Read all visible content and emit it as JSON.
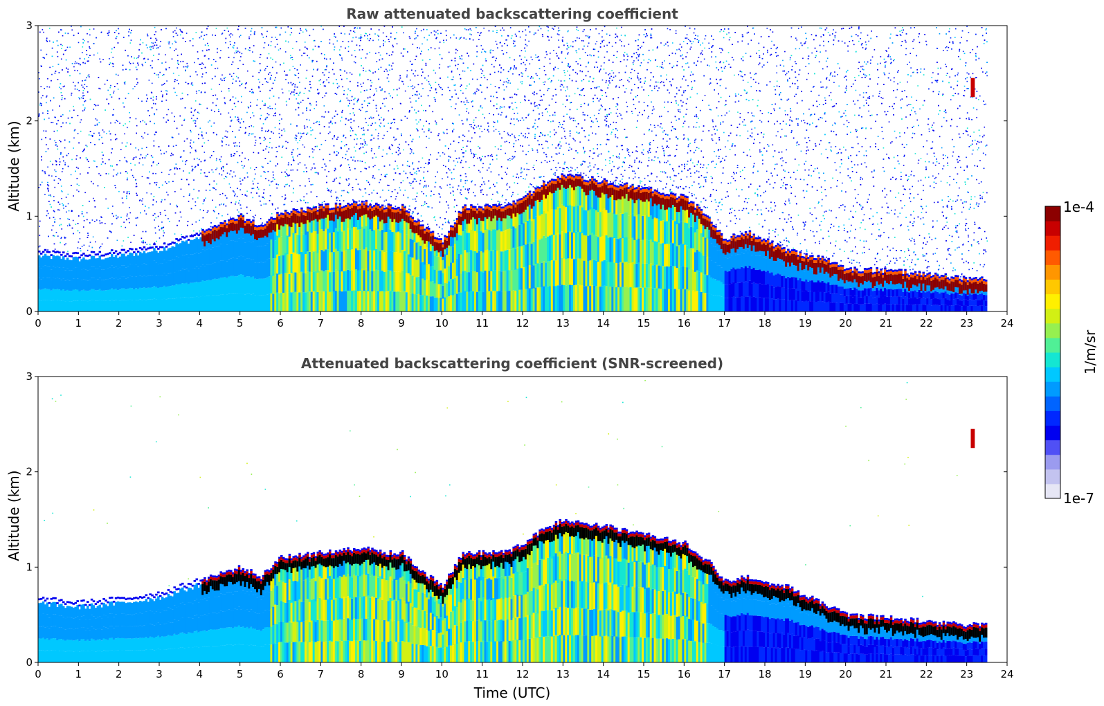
{
  "chart_data": [
    {
      "type": "heatmap",
      "title": "Raw attenuated backscattering coefficient",
      "xlabel": "",
      "ylabel": "Altitude (km)",
      "xlim": [
        0,
        24
      ],
      "ylim": [
        0,
        3
      ],
      "xticks": [
        "0",
        "1",
        "2",
        "3",
        "4",
        "5",
        "6",
        "7",
        "8",
        "9",
        "10",
        "11",
        "12",
        "13",
        "14",
        "15",
        "16",
        "17",
        "18",
        "19",
        "20",
        "21",
        "22",
        "23",
        "24"
      ],
      "yticks": [
        "0",
        "1",
        "2",
        "3"
      ],
      "data_end_hour": 23.5,
      "layer_top_km": [
        [
          0,
          0.58
        ],
        [
          1,
          0.55
        ],
        [
          2,
          0.58
        ],
        [
          3,
          0.65
        ],
        [
          4,
          0.78
        ],
        [
          5,
          0.95
        ],
        [
          5.5,
          0.85
        ],
        [
          6,
          1.0
        ],
        [
          7,
          1.05
        ],
        [
          8,
          1.1
        ],
        [
          8.7,
          1.05
        ],
        [
          9,
          1.05
        ],
        [
          9.5,
          0.85
        ],
        [
          10,
          0.7
        ],
        [
          10.5,
          1.05
        ],
        [
          11,
          1.05
        ],
        [
          11.5,
          1.05
        ],
        [
          12,
          1.15
        ],
        [
          12.5,
          1.3
        ],
        [
          13,
          1.4
        ],
        [
          14,
          1.32
        ],
        [
          15,
          1.25
        ],
        [
          16,
          1.15
        ],
        [
          16.6,
          0.95
        ],
        [
          17,
          0.7
        ],
        [
          17.5,
          0.8
        ],
        [
          18,
          0.7
        ],
        [
          18.5,
          0.6
        ],
        [
          19,
          0.55
        ],
        [
          19.5,
          0.5
        ],
        [
          20,
          0.4
        ],
        [
          21,
          0.38
        ],
        [
          22,
          0.35
        ],
        [
          23,
          0.3
        ],
        [
          23.5,
          0.3
        ]
      ],
      "noise": "dense",
      "min_layer": "aerosol-blue"
    },
    {
      "type": "heatmap",
      "title": "Attenuated backscattering coefficient (SNR-screened)",
      "xlabel": "Time (UTC)",
      "ylabel": "Altitude (km)",
      "xlim": [
        0,
        24
      ],
      "ylim": [
        0,
        3
      ],
      "xticks": [
        "0",
        "1",
        "2",
        "3",
        "4",
        "5",
        "6",
        "7",
        "8",
        "9",
        "10",
        "11",
        "12",
        "13",
        "14",
        "15",
        "16",
        "17",
        "18",
        "19",
        "20",
        "21",
        "22",
        "23",
        "24"
      ],
      "yticks": [
        "0",
        "1",
        "2",
        "3"
      ],
      "data_end_hour": 23.5,
      "layer_top_km": [
        [
          0,
          0.62
        ],
        [
          1,
          0.58
        ],
        [
          2,
          0.62
        ],
        [
          3,
          0.68
        ],
        [
          4,
          0.82
        ],
        [
          5,
          0.95
        ],
        [
          5.5,
          0.85
        ],
        [
          6,
          1.05
        ],
        [
          7,
          1.1
        ],
        [
          8,
          1.15
        ],
        [
          8.7,
          1.1
        ],
        [
          9,
          1.1
        ],
        [
          9.5,
          0.9
        ],
        [
          10,
          0.75
        ],
        [
          10.5,
          1.1
        ],
        [
          11,
          1.1
        ],
        [
          11.5,
          1.1
        ],
        [
          12,
          1.2
        ],
        [
          12.5,
          1.35
        ],
        [
          13,
          1.45
        ],
        [
          14,
          1.38
        ],
        [
          15,
          1.3
        ],
        [
          16,
          1.2
        ],
        [
          16.6,
          1.0
        ],
        [
          17,
          0.8
        ],
        [
          17.5,
          0.85
        ],
        [
          18,
          0.8
        ],
        [
          18.5,
          0.75
        ],
        [
          19,
          0.65
        ],
        [
          19.5,
          0.55
        ],
        [
          20,
          0.45
        ],
        [
          21,
          0.42
        ],
        [
          22,
          0.38
        ],
        [
          23,
          0.35
        ],
        [
          23.5,
          0.35
        ]
      ],
      "noise": "sparse",
      "min_layer": "screened-white"
    }
  ],
  "colorbar": {
    "label": "1/m/sr",
    "max_label": "1e-4",
    "min_label": "1e-7",
    "colors": [
      "#e6e6f5",
      "#c3c3f0",
      "#9b9bef",
      "#5050f5",
      "#0000f0",
      "#0028ff",
      "#0064ff",
      "#009bff",
      "#00c8ff",
      "#14e6d2",
      "#50f096",
      "#96f050",
      "#d2f014",
      "#fff000",
      "#ffc800",
      "#ff9600",
      "#ff5a00",
      "#f01e00",
      "#c80000",
      "#8c0000"
    ]
  }
}
